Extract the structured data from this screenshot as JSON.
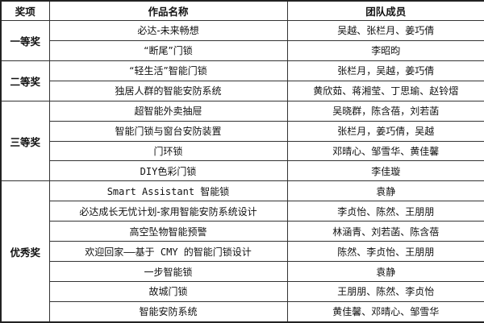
{
  "headers": [
    "奖项",
    "作品名称",
    "团队成员"
  ],
  "groups": [
    {
      "award": "一等奖",
      "rows": [
        {
          "work": "必达-未来畅想",
          "members": "吴越、张栏月、姜巧倩"
        },
        {
          "work": "“断尾”门锁",
          "members": "李昭昀"
        }
      ]
    },
    {
      "award": "二等奖",
      "rows": [
        {
          "work": "“轻生活”智能门锁",
          "members": "张栏月，吴越，姜巧倩"
        },
        {
          "work": "独居人群的智能安防系统",
          "members": "黄欣茹、蒋湘莹、丁思瑜、赵铃熠"
        }
      ]
    },
    {
      "award": "三等奖",
      "rows": [
        {
          "work": "超智能外卖抽屉",
          "members": "吴晓群，陈含蓓，刘若菡"
        },
        {
          "work": "智能门锁与窗台安防装置",
          "members": "张栏月，姜巧倩，吴越"
        },
        {
          "work": "门环锁",
          "members": "邓晴心、邹雪华、黄佳馨"
        },
        {
          "work": "DIY色彩门锁",
          "members": "李佳璇"
        }
      ]
    },
    {
      "award": "优秀奖",
      "rows": [
        {
          "work": "Smart Assistant 智能锁",
          "members": "袁静"
        },
        {
          "work": "必达成长无忧计划-家用智能安防系统设计",
          "members": "李贞怡、陈然、王朋朋"
        },
        {
          "work": "高空坠物智能预警",
          "members": "林涵青、刘若菡、陈含蓓"
        },
        {
          "work": "欢迎回家——基于 CMY 的智能门锁设计",
          "members": "陈然、李贞怡、王朋朋"
        },
        {
          "work": "一步智能锁",
          "members": "袁静"
        },
        {
          "work": "故城门锁",
          "members": "王朋朋、陈然、李贞怡"
        },
        {
          "work": "智能安防系统",
          "members": "黄佳馨、邓晴心、邹雪华"
        }
      ]
    }
  ]
}
